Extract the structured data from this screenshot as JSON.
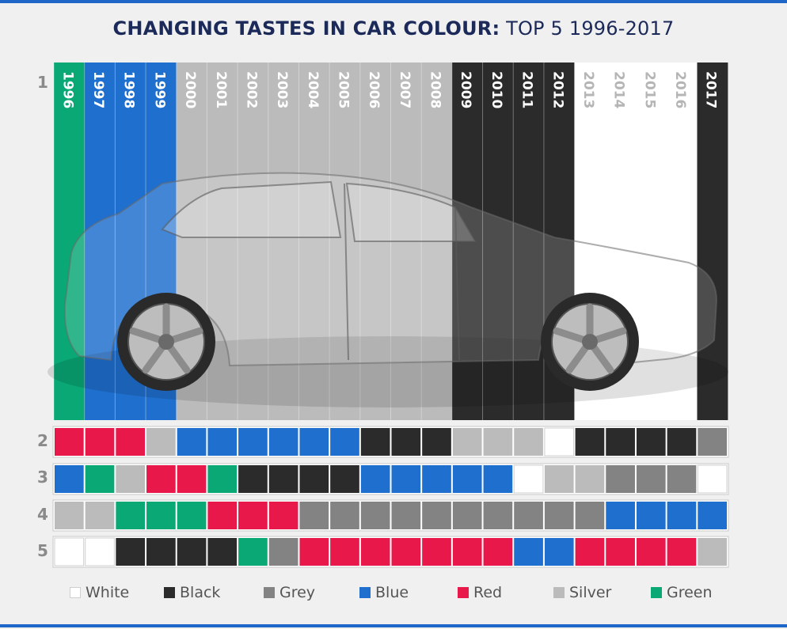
{
  "title": {
    "bold": "CHANGING TASTES IN CAR COLOUR:",
    "light": "TOP 5 1996-2017"
  },
  "rank_labels": [
    "1",
    "2",
    "3",
    "4",
    "5"
  ],
  "colors": {
    "White": "#ffffff",
    "Black": "#2b2b2b",
    "Grey": "#838383",
    "Blue": "#1f6fce",
    "Red": "#e8184a",
    "Silver": "#bbbbbb",
    "Green": "#0aa875"
  },
  "chart_data": {
    "type": "table",
    "title": "CHANGING TASTES IN CAR COLOUR: TOP 5 1996-2017",
    "years": [
      "1996",
      "1997",
      "1998",
      "1999",
      "2000",
      "2001",
      "2002",
      "2003",
      "2004",
      "2005",
      "2006",
      "2007",
      "2008",
      "2009",
      "2010",
      "2011",
      "2012",
      "2013",
      "2014",
      "2015",
      "2016",
      "2017"
    ],
    "ranks": [
      {
        "rank": "1",
        "colours": [
          "Green",
          "Blue",
          "Blue",
          "Blue",
          "Silver",
          "Silver",
          "Silver",
          "Silver",
          "Silver",
          "Silver",
          "Silver",
          "Silver",
          "Silver",
          "Black",
          "Black",
          "Black",
          "Black",
          "White",
          "White",
          "White",
          "White",
          "Black"
        ]
      },
      {
        "rank": "2",
        "colours": [
          "Red",
          "Red",
          "Red",
          "Silver",
          "Blue",
          "Blue",
          "Blue",
          "Blue",
          "Blue",
          "Blue",
          "Black",
          "Black",
          "Black",
          "Silver",
          "Silver",
          "Silver",
          "White",
          "Black",
          "Black",
          "Black",
          "Black",
          "Grey"
        ]
      },
      {
        "rank": "3",
        "colours": [
          "Blue",
          "Green",
          "Silver",
          "Red",
          "Red",
          "Green",
          "Black",
          "Black",
          "Black",
          "Black",
          "Blue",
          "Blue",
          "Blue",
          "Blue",
          "Blue",
          "White",
          "Silver",
          "Silver",
          "Grey",
          "Grey",
          "Grey",
          "White"
        ]
      },
      {
        "rank": "4",
        "colours": [
          "Silver",
          "Silver",
          "Green",
          "Green",
          "Green",
          "Red",
          "Red",
          "Red",
          "Grey",
          "Grey",
          "Grey",
          "Grey",
          "Grey",
          "Grey",
          "Grey",
          "Grey",
          "Grey",
          "Grey",
          "Blue",
          "Blue",
          "Blue",
          "Blue"
        ]
      },
      {
        "rank": "5",
        "colours": [
          "White",
          "White",
          "Black",
          "Black",
          "Black",
          "Black",
          "Green",
          "Grey",
          "Red",
          "Red",
          "Red",
          "Red",
          "Red",
          "Red",
          "Red",
          "Blue",
          "Blue",
          "Red",
          "Red",
          "Red",
          "Red",
          "Silver"
        ]
      }
    ],
    "legend": [
      "White",
      "Black",
      "Grey",
      "Blue",
      "Red",
      "Silver",
      "Green"
    ],
    "legend_placement": "bottom"
  }
}
